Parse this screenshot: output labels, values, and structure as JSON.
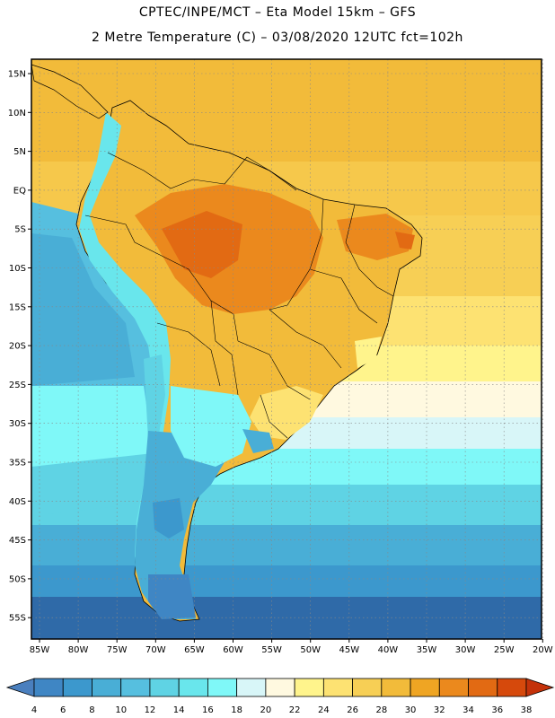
{
  "header": {
    "line1": "CPTEC/INPE/MCT –  Eta Model 15km – GFS",
    "line2": "2 Metre Temperature (C) – 03/08/2020 12UTC fct=102h"
  },
  "axes": {
    "lat_labels": [
      "15N",
      "10N",
      "5N",
      "EQ",
      "5S",
      "10S",
      "15S",
      "20S",
      "25S",
      "30S",
      "35S",
      "40S",
      "45S",
      "50S",
      "55S"
    ],
    "lon_labels": [
      "85W",
      "80W",
      "75W",
      "70W",
      "65W",
      "60W",
      "55W",
      "50W",
      "45W",
      "40W",
      "35W",
      "30W",
      "25W",
      "20W"
    ]
  },
  "colorbar": {
    "labels": [
      "4",
      "6",
      "8",
      "10",
      "12",
      "14",
      "16",
      "18",
      "20",
      "22",
      "24",
      "26",
      "28",
      "30",
      "32",
      "34",
      "36",
      "38"
    ],
    "colors": [
      "#4a7fbe",
      "#3f86c4",
      "#3c98cd",
      "#49aed6",
      "#56bfdf",
      "#5fd3e4",
      "#69e6ec",
      "#7ff8f8",
      "#d8f6f8",
      "#fff9e0",
      "#fff48c",
      "#fde272",
      "#f7cf55",
      "#f2bb3a",
      "#efa523",
      "#eb891d",
      "#e26a13",
      "#d6490c",
      "#c4320a"
    ]
  }
}
